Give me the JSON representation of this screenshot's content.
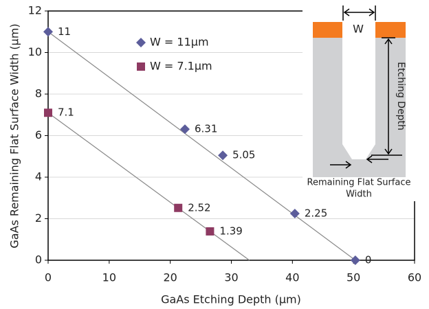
{
  "chart_data": {
    "type": "scatter",
    "x_label": "GaAs Etching Depth (µm)",
    "y_label": "GaAs Remaining Flat Surface Width (µm)",
    "xlim": [
      0,
      60
    ],
    "xticks": [
      0,
      10,
      20,
      30,
      40,
      50,
      60
    ],
    "ylim": [
      0,
      12
    ],
    "yticks": [
      0,
      2,
      4,
      6,
      8,
      10,
      12
    ],
    "grid": true,
    "trend_lines": true,
    "series": [
      {
        "name": "W = 11µm",
        "color": "#5c5d9b",
        "marker": "diamond",
        "x": [
          0,
          22.4,
          28.6,
          40.4,
          50.3
        ],
        "values": [
          11,
          6.31,
          5.05,
          2.25,
          0
        ]
      },
      {
        "name": "W = 7.1µm",
        "color": "#8e3a62",
        "marker": "square",
        "x": [
          0,
          21.3,
          26.5
        ],
        "values": [
          7.1,
          2.52,
          1.39
        ]
      }
    ],
    "annotations": {
      "width": "W",
      "depth": "Etching Depth",
      "flat_width": [
        "Remaining Flat Surface",
        "Width"
      ]
    }
  }
}
